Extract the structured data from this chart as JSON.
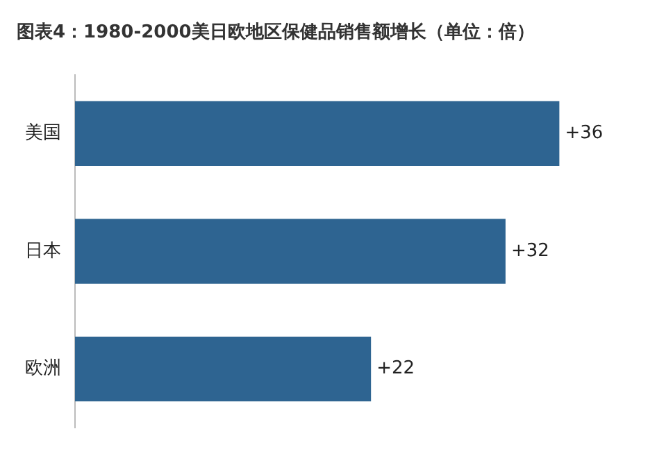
{
  "chart_data": {
    "type": "bar",
    "orientation": "horizontal",
    "title": "图表4：1980-2000美日欧地区保健品销售额增长（单位：倍）",
    "categories": [
      "美国",
      "日本",
      "欧洲"
    ],
    "values": [
      36,
      32,
      22
    ],
    "value_labels": [
      "+36",
      "+32",
      "+22"
    ],
    "color": "#2e6491"
  }
}
